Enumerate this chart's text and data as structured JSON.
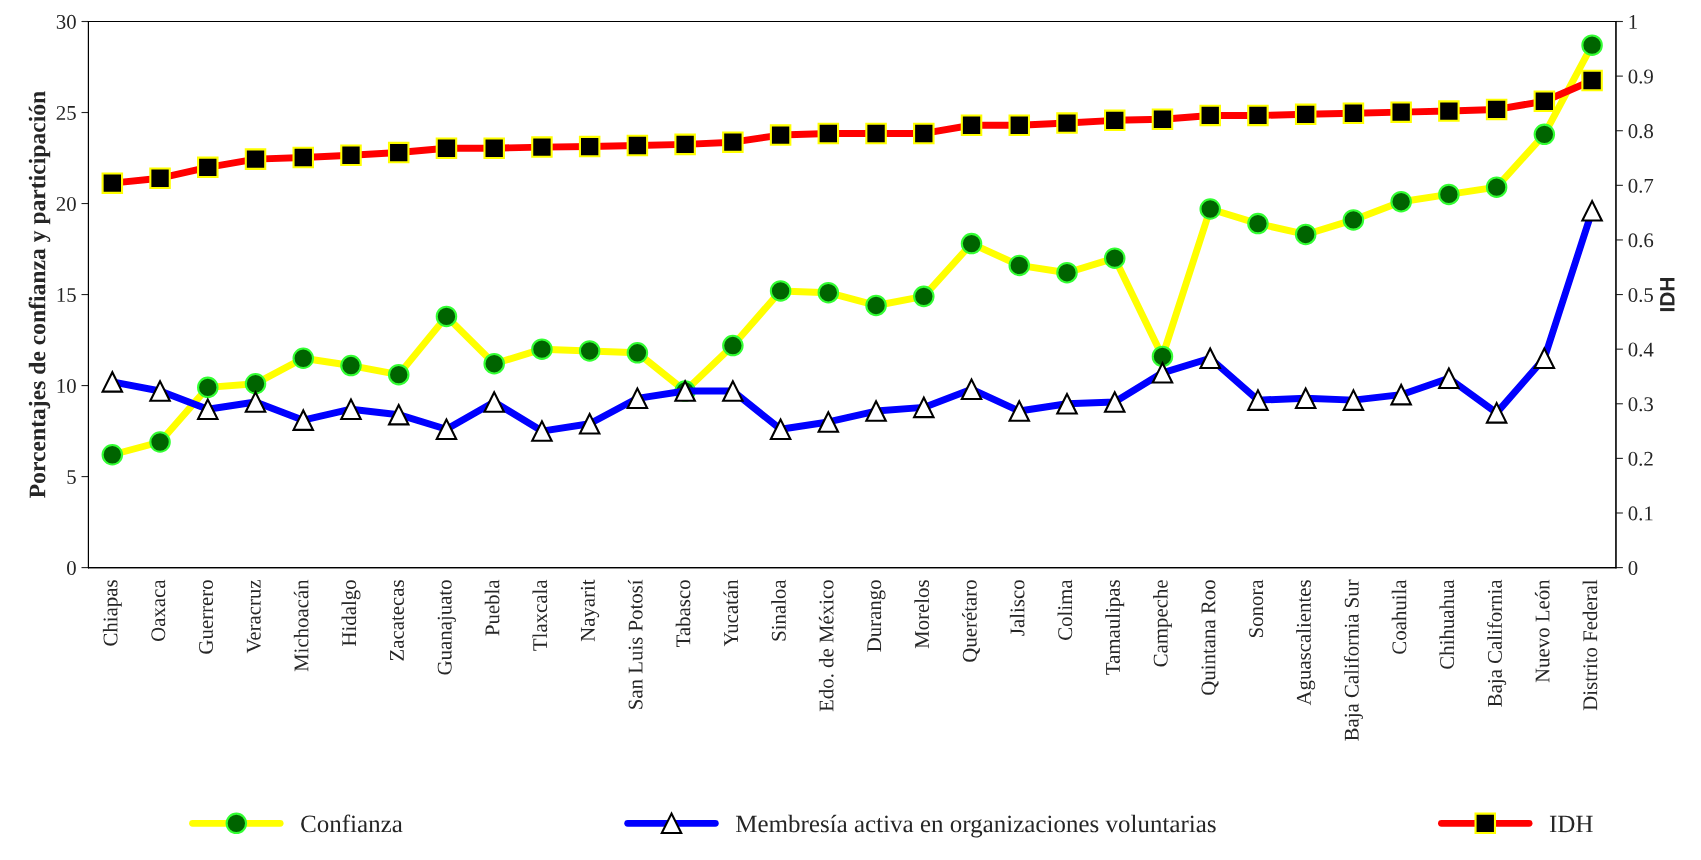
{
  "chart_data": {
    "type": "line",
    "categories": [
      "Chiapas",
      "Oaxaca",
      "Guerrero",
      "Veracruz",
      "Michoacán",
      "Hidalgo",
      "Zacatecas",
      "Guanajuato",
      "Puebla",
      "Tlaxcala",
      "Nayarit",
      "San Luis Potosí",
      "Tabasco",
      "Yucatán",
      "Sinaloa",
      "Edo. de México",
      "Durango",
      "Morelos",
      "Querétaro",
      "Jalisco",
      "Colima",
      "Tamaulipas",
      "Campeche",
      "Quintana Roo",
      "Sonora",
      "Aguascalientes",
      "Baja California Sur",
      "Coahuila",
      "Chihuahua",
      "Baja California",
      "Nuevo León",
      "Distrito Federal"
    ],
    "series": [
      {
        "name": "Confianza",
        "color": "#ffff00",
        "marker": "circle",
        "values": [
          6.2,
          6.9,
          9.9,
          10.1,
          11.5,
          11.1,
          10.6,
          13.8,
          11.2,
          12.0,
          11.9,
          11.8,
          9.7,
          12.2,
          15.2,
          15.1,
          14.4,
          14.9,
          17.8,
          16.6,
          16.2,
          17.0,
          11.6,
          19.7,
          18.9,
          18.3,
          19.1,
          20.1,
          20.5,
          20.9,
          23.8,
          28.7
        ]
      },
      {
        "name": "Membresía activa en organizaciones voluntarias",
        "color": "#0000ff",
        "marker": "triangle",
        "values": [
          10.2,
          9.7,
          8.7,
          9.1,
          8.1,
          8.7,
          8.4,
          7.6,
          9.1,
          7.5,
          7.9,
          9.3,
          9.7,
          9.7,
          7.6,
          8.0,
          8.6,
          8.8,
          9.8,
          8.6,
          9.0,
          9.1,
          10.7,
          11.5,
          9.2,
          9.3,
          9.2,
          9.5,
          10.4,
          8.5,
          11.5,
          19.6
        ]
      },
      {
        "name": "IDH",
        "color": "#ff0000",
        "marker": "square",
        "axis": "y2",
        "values": [
          0.704,
          0.713,
          0.733,
          0.748,
          0.751,
          0.755,
          0.76,
          0.768,
          0.768,
          0.77,
          0.771,
          0.773,
          0.775,
          0.779,
          0.792,
          0.795,
          0.795,
          0.795,
          0.81,
          0.81,
          0.814,
          0.819,
          0.821,
          0.828,
          0.828,
          0.83,
          0.832,
          0.834,
          0.836,
          0.839,
          0.854,
          0.892
        ]
      }
    ],
    "ylabel": "Porcentajes de confianza y participación",
    "y2label": "IDH",
    "ylim": [
      0,
      30
    ],
    "yticks": [
      0,
      5,
      10,
      15,
      20,
      25,
      30
    ],
    "y2lim": [
      0,
      1
    ],
    "y2ticks": [
      0,
      0.1,
      0.2,
      0.3,
      0.4,
      0.5,
      0.6,
      0.7,
      0.8,
      0.9,
      1
    ],
    "grid": false,
    "legend": "bottom",
    "line_style": "solid"
  }
}
